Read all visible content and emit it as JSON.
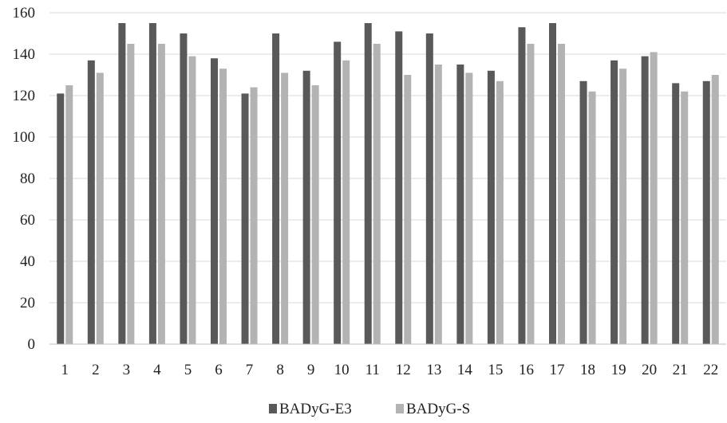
{
  "chart_data": {
    "type": "bar",
    "title": "",
    "xlabel": "",
    "ylabel": "",
    "categories": [
      "1",
      "2",
      "3",
      "4",
      "5",
      "6",
      "7",
      "8",
      "9",
      "10",
      "11",
      "12",
      "13",
      "14",
      "15",
      "16",
      "17",
      "18",
      "19",
      "20",
      "21",
      "22"
    ],
    "series": [
      {
        "name": "BADyG-E3",
        "color": "#595959",
        "values": [
          121,
          137,
          155,
          155,
          150,
          138,
          121,
          150,
          132,
          146,
          155,
          151,
          150,
          135,
          132,
          153,
          155,
          127,
          137,
          139,
          126,
          127
        ]
      },
      {
        "name": "BADyG-S",
        "color": "#b3b3b3",
        "values": [
          125,
          131,
          145,
          145,
          139,
          133,
          124,
          131,
          125,
          137,
          145,
          130,
          135,
          131,
          127,
          145,
          145,
          122,
          133,
          141,
          122,
          130
        ]
      }
    ],
    "ylim": [
      0,
      160
    ],
    "yticks": [
      0,
      20,
      40,
      60,
      80,
      100,
      120,
      140,
      160
    ],
    "grid": true,
    "legend": "bottom"
  }
}
